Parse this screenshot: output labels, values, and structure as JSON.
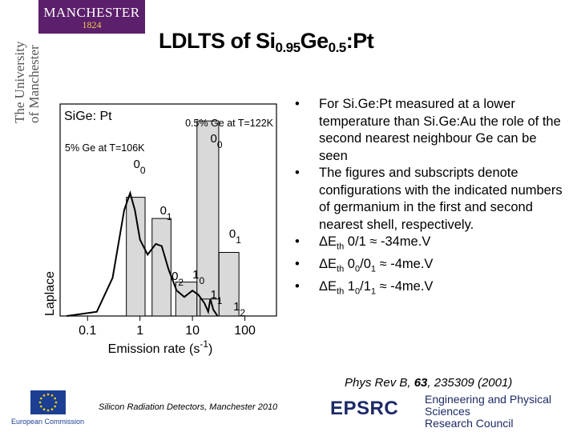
{
  "logo": {
    "name": "MANCHESTER",
    "year": "1824"
  },
  "side_text": "The University\nof Manchester",
  "title": {
    "prefix": "LDLTS of Si",
    "sub1": "0.95",
    "mid": "Ge",
    "sub2": "0.5",
    "suffix": ":Pt"
  },
  "chart_data": {
    "type": "line",
    "title": "SiGe: Pt",
    "xlabel": "Emission rate (s",
    "xlabel_sup": "-1",
    "xlabel_end": ")",
    "ylabel": "Laplace",
    "x_scale": "log",
    "xlim": [
      0.03,
      400
    ],
    "x_ticks": [
      0.1,
      1,
      10,
      100
    ],
    "x_tick_labels": [
      "0.1",
      "1",
      "10",
      "100"
    ],
    "annotations": {
      "a": "0.5% Ge at T=122K",
      "b": "5% Ge at T=106K"
    },
    "peak_labels": [
      {
        "main": "0",
        "sub": "0",
        "x": 0.75
      },
      {
        "main": "0",
        "sub": "0",
        "x": 22
      },
      {
        "main": "0",
        "sub": "1",
        "x": 2.4
      },
      {
        "main": "0",
        "sub": "1",
        "x": 50
      },
      {
        "main": "0",
        "sub": "2",
        "x": 4
      },
      {
        "main": "1",
        "sub": "0",
        "x": 10
      },
      {
        "main": "1",
        "sub": "1",
        "x": 22
      },
      {
        "main": "1",
        "sub": "2",
        "x": 60
      }
    ],
    "bars": [
      {
        "x": 0.55,
        "w": 0.7,
        "h": 0.56
      },
      {
        "x": 1.7,
        "w": 2.2,
        "h": 0.46
      },
      {
        "x": 4.8,
        "w": 7.4,
        "h": 0.16
      },
      {
        "x": 12.2,
        "w": 19.5,
        "h": 0.92
      },
      {
        "x": 32,
        "w": 45,
        "h": 0.3
      },
      {
        "x": 14,
        "w": 18,
        "h": 0.08
      }
    ],
    "curve": [
      {
        "x": 0.04,
        "y": 0.0
      },
      {
        "x": 0.15,
        "y": 0.02
      },
      {
        "x": 0.3,
        "y": 0.18
      },
      {
        "x": 0.5,
        "y": 0.5
      },
      {
        "x": 0.65,
        "y": 0.58
      },
      {
        "x": 0.8,
        "y": 0.5
      },
      {
        "x": 1.0,
        "y": 0.36
      },
      {
        "x": 1.4,
        "y": 0.29
      },
      {
        "x": 2.0,
        "y": 0.34
      },
      {
        "x": 2.6,
        "y": 0.33
      },
      {
        "x": 3.5,
        "y": 0.22
      },
      {
        "x": 5.0,
        "y": 0.12
      },
      {
        "x": 7.0,
        "y": 0.09
      },
      {
        "x": 10.0,
        "y": 0.12
      },
      {
        "x": 13.0,
        "y": 0.1
      },
      {
        "x": 17.0,
        "y": 0.06
      },
      {
        "x": 20.0,
        "y": 0.02
      },
      {
        "x": 22.0,
        "y": 0.08
      },
      {
        "x": 25.0,
        "y": 0.03
      },
      {
        "x": 30.0,
        "y": 0.0
      }
    ]
  },
  "bullets": [
    {
      "text": "For Si.Ge:Pt measured at a lower temperature than Si.Ge:Au the role of the second nearest neighbour Ge can be seen"
    },
    {
      "text": "The figures and subscripts denote configurations with the indicated numbers of germanium in the first and second nearest shell, respectively."
    },
    {
      "delta": "ΔE",
      "sub": "th",
      "rest": " 0/1 ≈ -34me.V"
    },
    {
      "delta": "ΔE",
      "sub": "th",
      "rest": " 0",
      "sub2": "0",
      "rest2": "/0",
      "sub3": "1",
      "rest3": " ≈ -4me.V"
    },
    {
      "delta": "ΔE",
      "sub": "th",
      "rest": " 1",
      "sub2": "0",
      "rest2": "/1",
      "sub3": "1",
      "rest3": " ≈ -4me.V"
    }
  ],
  "bullet_char": "•",
  "reference": {
    "pre": "Phys Rev B, ",
    "vol": "63",
    "post": ", 235309 (2001)"
  },
  "footer": "Silicon Radiation Detectors, Manchester 2010",
  "eu_label": "European Commission",
  "epsrc": {
    "logo": "EPSRC",
    "line1": "Engineering and Physical Sciences",
    "line2": "Research Council"
  },
  "colors": {
    "logo_bg": "#5b1f6b",
    "epsrc": "#1c2a66",
    "bar_fill": "#d9d9d9"
  }
}
